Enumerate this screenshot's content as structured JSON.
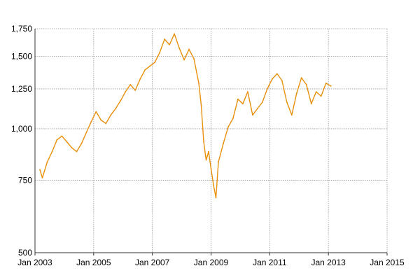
{
  "chart_data": {
    "type": "line",
    "title": "",
    "xlabel": "",
    "ylabel": "",
    "y_scale": "log",
    "grid": true,
    "legend": "none",
    "xlim": [
      "2003-01",
      "2015-01"
    ],
    "ylim": [
      500,
      1750
    ],
    "x_ticks": [
      {
        "label": "Jan 2003",
        "value": "2003-01"
      },
      {
        "label": "Jan 2005",
        "value": "2005-01"
      },
      {
        "label": "Jan 2007",
        "value": "2007-01"
      },
      {
        "label": "Jan 2009",
        "value": "2009-01"
      },
      {
        "label": "Jan 2011",
        "value": "2011-01"
      },
      {
        "label": "Jan 2013",
        "value": "2013-01"
      },
      {
        "label": "Jan 2015",
        "value": "2015-01"
      }
    ],
    "y_ticks": [
      {
        "label": "500",
        "value": 500
      },
      {
        "label": "750",
        "value": 750
      },
      {
        "label": "1,000",
        "value": 1000
      },
      {
        "label": "1,250",
        "value": 1250
      },
      {
        "label": "1,500",
        "value": 1500
      },
      {
        "label": "1,750",
        "value": 1750
      }
    ],
    "colors": {
      "line": "#e8900c",
      "grid": "#999999"
    },
    "series": [
      {
        "x": [
          "2003-03",
          "2003-04",
          "2003-06",
          "2003-08",
          "2003-10",
          "2003-12",
          "2004-02",
          "2004-04",
          "2004-06",
          "2004-08",
          "2004-10",
          "2004-12",
          "2005-02",
          "2005-04",
          "2005-06",
          "2005-08",
          "2005-10",
          "2005-12",
          "2006-02",
          "2006-04",
          "2006-06",
          "2006-08",
          "2006-10",
          "2006-12",
          "2007-02",
          "2007-04",
          "2007-06",
          "2007-08",
          "2007-10",
          "2007-12",
          "2008-02",
          "2008-04",
          "2008-06",
          "2008-08",
          "2008-09",
          "2008-10",
          "2008-11",
          "2008-12",
          "2009-01",
          "2009-02",
          "2009-03",
          "2009-04",
          "2009-06",
          "2009-08",
          "2009-10",
          "2009-12",
          "2010-02",
          "2010-04",
          "2010-06",
          "2010-08",
          "2010-10",
          "2010-12",
          "2011-02",
          "2011-04",
          "2011-06",
          "2011-08",
          "2011-10",
          "2011-12",
          "2012-02",
          "2012-04",
          "2012-06",
          "2012-08",
          "2012-10",
          "2012-12",
          "2013-02"
        ],
        "values": [
          795,
          760,
          830,
          880,
          940,
          960,
          930,
          900,
          880,
          920,
          980,
          1040,
          1100,
          1050,
          1030,
          1080,
          1120,
          1170,
          1230,
          1280,
          1240,
          1320,
          1390,
          1420,
          1450,
          1530,
          1650,
          1600,
          1700,
          1570,
          1470,
          1560,
          1480,
          1290,
          1140,
          930,
          840,
          880,
          800,
          730,
          680,
          830,
          920,
          1010,
          1060,
          1180,
          1150,
          1230,
          1080,
          1120,
          1160,
          1250,
          1320,
          1360,
          1310,
          1160,
          1080,
          1220,
          1330,
          1280,
          1150,
          1230,
          1200,
          1290,
          1270
        ]
      }
    ]
  }
}
